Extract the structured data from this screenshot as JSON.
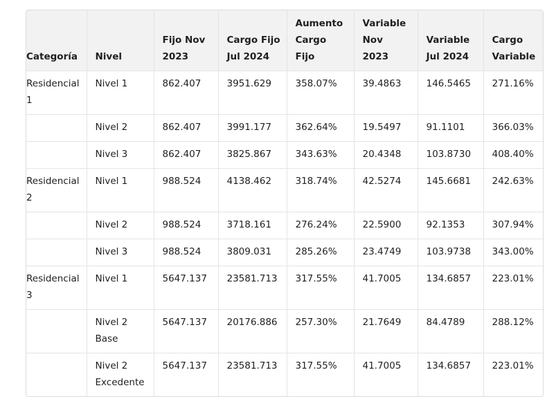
{
  "table": {
    "headers": [
      [
        "Categoría"
      ],
      [
        "Nivel"
      ],
      [
        "Fijo Nov",
        "2023"
      ],
      [
        "Cargo Fijo",
        "Jul 2024"
      ],
      [
        "Aumento",
        "Cargo Fijo"
      ],
      [
        "Variable",
        "Nov 2023"
      ],
      [
        "Variable",
        "Jul 2024"
      ],
      [
        "Cargo",
        "Variable"
      ]
    ],
    "rows": [
      {
        "tall": true,
        "cells": [
          [
            "Residencial",
            "1"
          ],
          [
            "Nivel 1"
          ],
          [
            "862.407"
          ],
          [
            "3951.629"
          ],
          [
            "358.07%"
          ],
          [
            "39.4863"
          ],
          [
            "146.5465"
          ],
          [
            "271.16%"
          ]
        ]
      },
      {
        "tall": false,
        "cells": [
          [
            ""
          ],
          [
            "Nivel 2"
          ],
          [
            "862.407"
          ],
          [
            "3991.177"
          ],
          [
            "362.64%"
          ],
          [
            "19.5497"
          ],
          [
            "91.1101"
          ],
          [
            "366.03%"
          ]
        ]
      },
      {
        "tall": false,
        "cells": [
          [
            ""
          ],
          [
            "Nivel 3"
          ],
          [
            "862.407"
          ],
          [
            "3825.867"
          ],
          [
            "343.63%"
          ],
          [
            "20.4348"
          ],
          [
            "103.8730"
          ],
          [
            "408.40%"
          ]
        ]
      },
      {
        "tall": true,
        "cells": [
          [
            "Residencial",
            "2"
          ],
          [
            "Nivel 1"
          ],
          [
            "988.524"
          ],
          [
            "4138.462"
          ],
          [
            "318.74%"
          ],
          [
            "42.5274"
          ],
          [
            "145.6681"
          ],
          [
            "242.63%"
          ]
        ]
      },
      {
        "tall": false,
        "cells": [
          [
            ""
          ],
          [
            "Nivel 2"
          ],
          [
            "988.524"
          ],
          [
            "3718.161"
          ],
          [
            "276.24%"
          ],
          [
            "22.5900"
          ],
          [
            "92.1353"
          ],
          [
            "307.94%"
          ]
        ]
      },
      {
        "tall": false,
        "cells": [
          [
            ""
          ],
          [
            "Nivel 3"
          ],
          [
            "988.524"
          ],
          [
            "3809.031"
          ],
          [
            "285.26%"
          ],
          [
            "23.4749"
          ],
          [
            "103.9738"
          ],
          [
            "343.00%"
          ]
        ]
      },
      {
        "tall": true,
        "cells": [
          [
            "Residencial",
            "3"
          ],
          [
            "Nivel 1"
          ],
          [
            "5647.137"
          ],
          [
            "23581.713"
          ],
          [
            "317.55%"
          ],
          [
            "41.7005"
          ],
          [
            "134.6857"
          ],
          [
            "223.01%"
          ]
        ]
      },
      {
        "tall": true,
        "cells": [
          [
            ""
          ],
          [
            "Nivel 2",
            "Base"
          ],
          [
            "5647.137"
          ],
          [
            "20176.886"
          ],
          [
            "257.30%"
          ],
          [
            "21.7649"
          ],
          [
            "84.4789"
          ],
          [
            "288.12%"
          ]
        ]
      },
      {
        "tall": true,
        "cells": [
          [
            ""
          ],
          [
            "Nivel 2",
            "Excedente"
          ],
          [
            "5647.137"
          ],
          [
            "23581.713"
          ],
          [
            "317.55%"
          ],
          [
            "41.7005"
          ],
          [
            "134.6857"
          ],
          [
            "223.01%"
          ]
        ]
      }
    ]
  }
}
